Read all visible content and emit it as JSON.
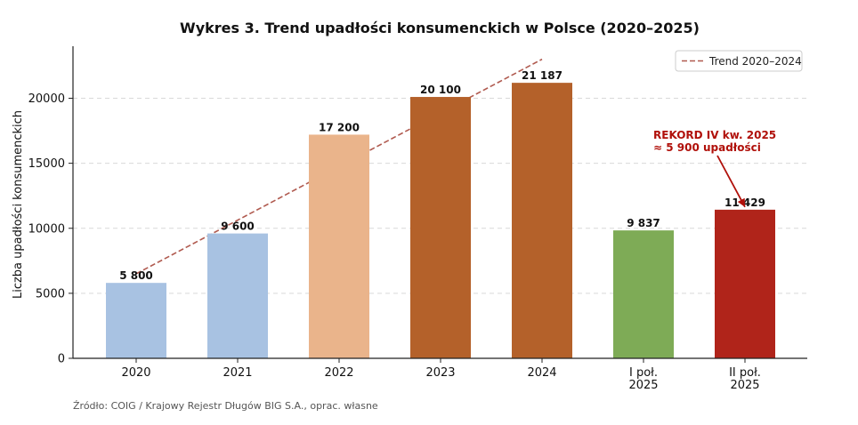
{
  "chart_data": {
    "type": "bar",
    "title": "Wykres 3. Trend upadłości konsumenckich w Polsce (2020–2025)",
    "xlabel": "",
    "ylabel": "Liczba upadłości konsumenckich",
    "ylim": [
      0,
      24000
    ],
    "yticks": [
      0,
      5000,
      10000,
      15000,
      20000
    ],
    "grid": "horizontal dashed",
    "categories": [
      [
        "2020"
      ],
      [
        "2021"
      ],
      [
        "2022"
      ],
      [
        "2023"
      ],
      [
        "2024"
      ],
      [
        "I poł.",
        "2025"
      ],
      [
        "II poł.",
        "2025"
      ]
    ],
    "values": [
      5800,
      9600,
      17200,
      20100,
      21187,
      9837,
      11429
    ],
    "data_labels": [
      "5 800",
      "9 600",
      "17 200",
      "20 100",
      "21 187",
      "9 837",
      "11 429"
    ],
    "colors": [
      "#a8c2e2",
      "#a8c2e2",
      "#eab48b",
      "#b4612a",
      "#b4612a",
      "#7eab56",
      "#b0241a"
    ],
    "trend": {
      "name": "Trend 2020–2024",
      "color": "#b05a4f",
      "x_start": 0,
      "y_start": 6500,
      "x_end": 4,
      "y_end": 23000
    },
    "legend": {
      "position": "top-right"
    },
    "annotation": {
      "lines": [
        "REKORD IV kw. 2025",
        "≈ 5 900 upadłości"
      ],
      "color": "#b0100a",
      "target_category": 6,
      "target_value": 11429
    },
    "source": "Źródło: COIG / Krajowy Rejestr Długów BIG S.A., oprac. własne"
  }
}
